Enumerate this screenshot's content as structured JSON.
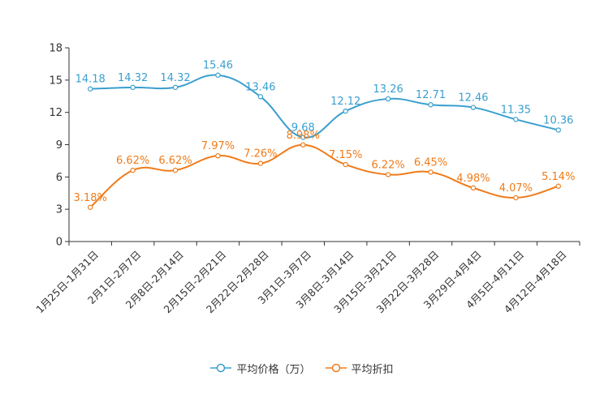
{
  "chart_data": {
    "type": "line",
    "categories": [
      "1月25日-1月31日",
      "2月1日-2月7日",
      "2月8日-2月14日",
      "2月15日-2月21日",
      "2月22日-2月28日",
      "3月1日-3月7日",
      "3月8日-3月14日",
      "3月15日-3月21日",
      "3月22日-3月28日",
      "3月29日-4月4日",
      "4月5日-4月11日",
      "4月12日-4月18日"
    ],
    "series": [
      {
        "name": "平均价格（万）",
        "color": "#3a9fcf",
        "values": [
          14.18,
          14.32,
          14.32,
          15.46,
          13.46,
          9.68,
          12.12,
          13.26,
          12.71,
          12.46,
          11.35,
          10.36
        ],
        "labels": [
          "14.18",
          "14.32",
          "14.32",
          "15.46",
          "13.46",
          "9.68",
          "12.12",
          "13.26",
          "12.71",
          "12.46",
          "11.35",
          "10.36"
        ]
      },
      {
        "name": "平均折扣",
        "color": "#f07b1a",
        "values": [
          3.18,
          6.62,
          6.62,
          7.97,
          7.26,
          8.98,
          7.15,
          6.22,
          6.45,
          4.98,
          4.07,
          5.14
        ],
        "labels": [
          "3.18%",
          "6.62%",
          "6.62%",
          "7.97%",
          "7.26%",
          "8.98%",
          "7.15%",
          "6.22%",
          "6.45%",
          "4.98%",
          "4.07%",
          "5.14%"
        ]
      }
    ],
    "yticks": [
      0,
      3,
      6,
      9,
      12,
      15,
      18
    ],
    "ylim": [
      0,
      18
    ],
    "legend_position": "bottom"
  }
}
